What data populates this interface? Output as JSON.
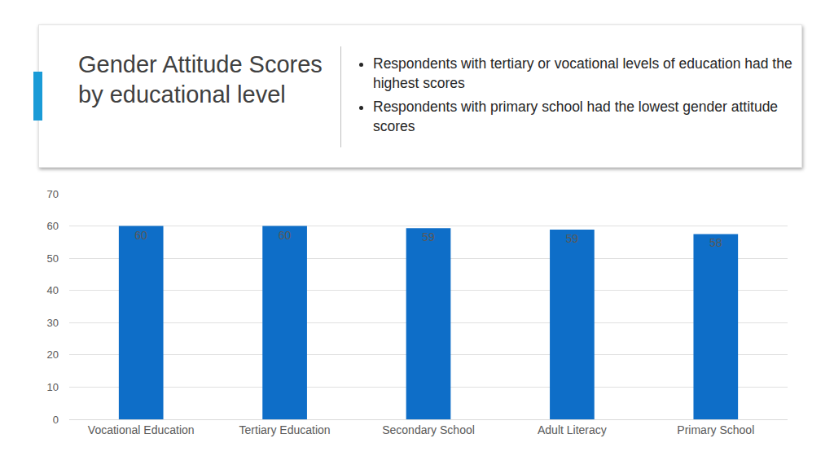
{
  "chart_data": {
    "type": "bar",
    "title": "Gender Attitude Scores by educational level",
    "annotations": [
      "Respondents with tertiary or vocational levels of education had the highest scores",
      "Respondents with primary school had the lowest gender attitude scores"
    ],
    "categories": [
      "Vocational Education",
      "Tertiary Education",
      "Secondary School",
      "Adult Literacy",
      "Primary School"
    ],
    "values": [
      60,
      60,
      59.3,
      58.9,
      57.5
    ],
    "value_labels": [
      "60",
      "60",
      "59",
      "59",
      "58"
    ],
    "color": "#0e6ec8",
    "ylim": [
      0,
      70
    ],
    "yticks": [
      0,
      10,
      20,
      30,
      40,
      50,
      60,
      70
    ],
    "grid": true,
    "data_labels": true
  }
}
